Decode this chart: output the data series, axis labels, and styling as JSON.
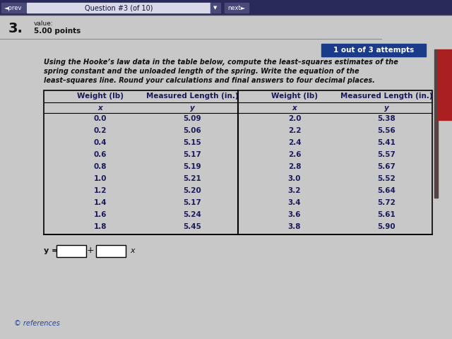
{
  "title_bar_text": "Question #3 (of 10)",
  "prev_text": "◄prev",
  "next_text": "next►",
  "question_number": "3.",
  "value_label": "value:",
  "points": "5.00 points",
  "attempts_badge": "1 out of 3 attempts",
  "para_line1": "Using the Hooke’s law data in the table below, compute the least–squares estimates of the",
  "para_line2": "spring constant and the unloaded length of the spring. Write the equation of the",
  "para_line3": "least–squares line. Round your calculations and final answers to four decimal places.",
  "col1_header1": "Weight (lb)",
  "col1_header2": "Measured Length (in.)",
  "col2_header1": "Weight (lb)",
  "col2_header2": "Measured Length (in.)",
  "left_x": [
    0.0,
    0.2,
    0.4,
    0.6,
    0.8,
    1.0,
    1.2,
    1.4,
    1.6,
    1.8
  ],
  "left_y": [
    5.09,
    5.06,
    5.15,
    5.17,
    5.19,
    5.21,
    5.2,
    5.17,
    5.24,
    5.45
  ],
  "right_x": [
    2.0,
    2.2,
    2.4,
    2.6,
    2.8,
    3.0,
    3.2,
    3.4,
    3.6,
    3.8
  ],
  "right_y": [
    5.38,
    5.56,
    5.41,
    5.57,
    5.67,
    5.52,
    5.64,
    5.72,
    5.61,
    5.9
  ],
  "references_text": "© references",
  "bg_main": "#b8b8b8",
  "bg_content": "#c8c8c8",
  "nav_bar_color": "#2a2a5a",
  "nav_input_color": "#d8d8e8",
  "nav_btn_color": "#4a4a7a",
  "badge_bg": "#1a3a8a",
  "badge_text_color": "#ffffff",
  "table_text_color": "#1a1a5a",
  "table_bg": "#c8c8c8",
  "input_box_color": "#ffffff",
  "sidebar_color": "#aa2020",
  "text_color_dark": "#111111",
  "separator_line_color": "#888888"
}
